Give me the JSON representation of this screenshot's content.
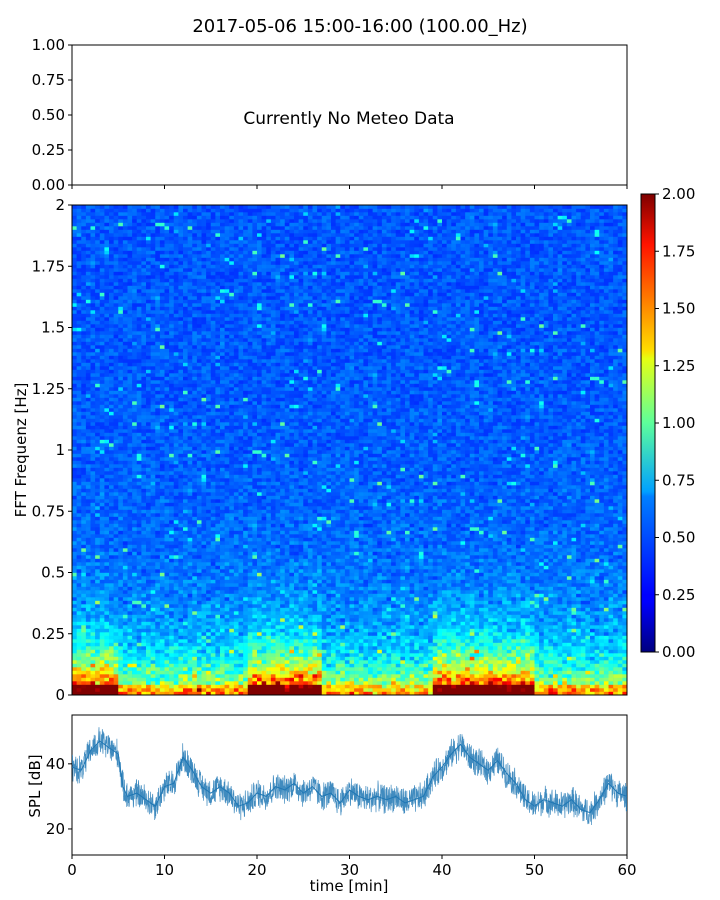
{
  "title": "2017-05-06 15:00-16:00 (100.00_Hz)",
  "chart_data": [
    {
      "type": "line",
      "panel": "meteo",
      "annotation": "Currently No Meteo Data",
      "ylim": [
        0,
        1
      ],
      "yticks": [
        "1.00",
        "0.75",
        "0.50",
        "0.25",
        "0.00"
      ],
      "series": []
    },
    {
      "type": "heatmap",
      "panel": "spectrogram",
      "ylabel": "FFT Frequenz [Hz]",
      "ylim": [
        0,
        2
      ],
      "xlim": [
        0,
        60
      ],
      "yticks": [
        "2",
        "1.75",
        "1.5",
        "1.25",
        "1",
        "0.75",
        "0.5",
        "0.25",
        "0"
      ],
      "colormap": "jet",
      "colorbar": {
        "range": [
          0,
          2
        ],
        "ticks": [
          "2.00",
          "1.75",
          "1.50",
          "1.25",
          "1.00",
          "0.75",
          "0.50",
          "0.25",
          "0.00"
        ]
      },
      "high_energy_time_ranges_min": [
        [
          0,
          5
        ],
        [
          19,
          27
        ],
        [
          39,
          50
        ]
      ]
    },
    {
      "type": "line",
      "panel": "spl",
      "xlabel": "time [min]",
      "ylabel": "SPL [dB]",
      "xlim": [
        0,
        60
      ],
      "ylim": [
        12,
        55
      ],
      "xticks": [
        "0",
        "10",
        "20",
        "30",
        "40",
        "50",
        "60"
      ],
      "yticks": [
        "40",
        "20"
      ],
      "color": "#1f77b4",
      "x": [
        0,
        1,
        2,
        3,
        4,
        5,
        5.5,
        6,
        7,
        8,
        9,
        10,
        11,
        12,
        13,
        14,
        15,
        16,
        17,
        18,
        19,
        20,
        21,
        22,
        23,
        24,
        25,
        26,
        27,
        28,
        29,
        30,
        31,
        32,
        33,
        34,
        35,
        36,
        37,
        38,
        39,
        40,
        41,
        42,
        43,
        44,
        45,
        46,
        47,
        48,
        49,
        50,
        51,
        52,
        53,
        54,
        55,
        56,
        57,
        58,
        59,
        60
      ],
      "y": [
        39,
        38,
        44,
        47,
        45,
        43,
        33,
        30,
        31,
        29,
        27,
        33,
        34,
        42,
        38,
        33,
        31,
        33,
        31,
        27,
        28,
        31,
        30,
        33,
        32,
        34,
        31,
        33,
        30,
        31,
        28,
        32,
        30,
        29,
        30,
        29,
        30,
        28,
        29,
        30,
        36,
        39,
        43,
        46,
        42,
        40,
        38,
        41,
        37,
        34,
        29,
        27,
        29,
        28,
        27,
        29,
        26,
        25,
        29,
        34,
        31,
        30
      ],
      "noise_amplitude_db": 5
    }
  ]
}
